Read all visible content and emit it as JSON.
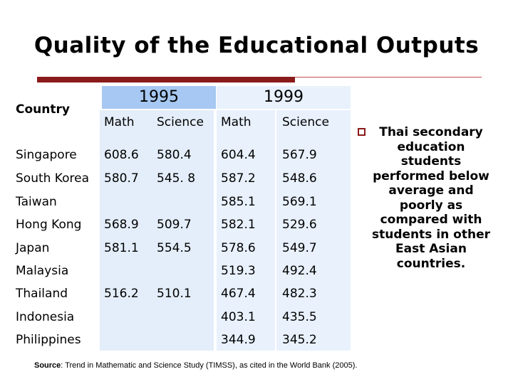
{
  "title": "Quality of the Educational Outputs",
  "country_header": "Country",
  "years": [
    "1995",
    "1999"
  ],
  "subjects": [
    "Math",
    "Science",
    "Math",
    "Science"
  ],
  "rows": [
    {
      "country": "Singapore",
      "math1995": "608.6",
      "sci1995": "580.4",
      "math1999": "604.4",
      "sci1999": "567.9"
    },
    {
      "country": "South Korea",
      "math1995": "580.7",
      "sci1995": "545. 8",
      "math1999": "587.2",
      "sci1999": "548.6"
    },
    {
      "country": "Taiwan",
      "math1995": "",
      "sci1995": "",
      "math1999": "585.1",
      "sci1999": "569.1"
    },
    {
      "country": "Hong Kong",
      "math1995": "568.9",
      "sci1995": "509.7",
      "math1999": "582.1",
      "sci1999": "529.6"
    },
    {
      "country": "Japan",
      "math1995": "581.1",
      "sci1995": "554.5",
      "math1999": "578.6",
      "sci1999": "549.7"
    },
    {
      "country": "Malaysia",
      "math1995": "",
      "sci1995": "",
      "math1999": "519.3",
      "sci1999": "492.4"
    },
    {
      "country": "Thailand",
      "math1995": "516.2",
      "sci1995": "510.1",
      "math1999": "467.4",
      "sci1999": "482.3"
    },
    {
      "country": "Indonesia",
      "math1995": "",
      "sci1995": "",
      "math1999": "403.1",
      "sci1999": "435.5"
    },
    {
      "country": "Philippines",
      "math1995": "",
      "sci1995": "",
      "math1999": "344.9",
      "sci1999": "345.2"
    }
  ],
  "note": "Thai secondary education students performed below average and poorly as compared with students in other East Asian countries.",
  "source_label": "Source",
  "source_text": ": Trend in Mathematic and Science Study (TIMSS), as cited in the World Bank (2005).",
  "colors": {
    "accent": "#8b1a1a",
    "header_1995": "#a6c8f2",
    "header_1999": "#e8f1fc",
    "band": "#e4eefa"
  }
}
